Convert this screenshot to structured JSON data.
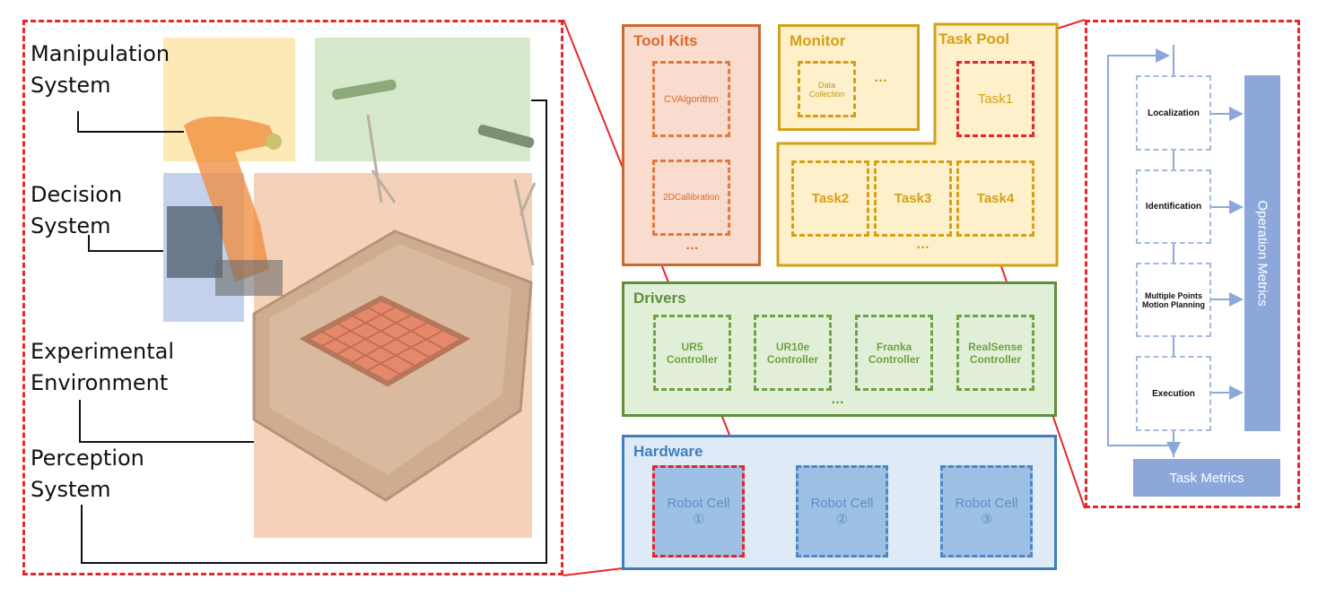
{
  "scene": {
    "labels": [
      "Manipulation\nSystem",
      "Decision\nSystem",
      "Experimental\nEnvironment",
      "Perception\nSystem"
    ]
  },
  "toolkits": {
    "title": "Tool Kits",
    "items": [
      "CVAlgorithm",
      "2DCallibration"
    ],
    "more": "…"
  },
  "monitor": {
    "title": "Monitor",
    "item": "Data\nCollection",
    "more": "…"
  },
  "taskpool": {
    "title": "Task Pool",
    "task1": "Task1",
    "tasks": [
      "Task2",
      "Task3",
      "Task4"
    ],
    "more": "…"
  },
  "drivers": {
    "title": "Drivers",
    "items": [
      "UR5\nController",
      "UR10e\nController",
      "Franka\nController",
      "RealSense\nController"
    ],
    "more": "…"
  },
  "hardware": {
    "title": "Hardware",
    "cells": [
      "Robot Cell\n①",
      "Robot Cell\n②",
      "Robot Cell\n③"
    ]
  },
  "flow": {
    "steps": [
      "Localization",
      "Identification",
      "Multiple Points\nMotion Planning",
      "Execution"
    ],
    "operation_metrics": "Operation Metrics",
    "task_metrics": "Task Metrics"
  },
  "colors": {
    "highlight_red": "#e8262a",
    "toolkits": "#d9692e",
    "yellow": "#d4a016",
    "green": "#5f8f3a",
    "blue": "#3f7ec0",
    "metrics": "#8ca8da"
  }
}
